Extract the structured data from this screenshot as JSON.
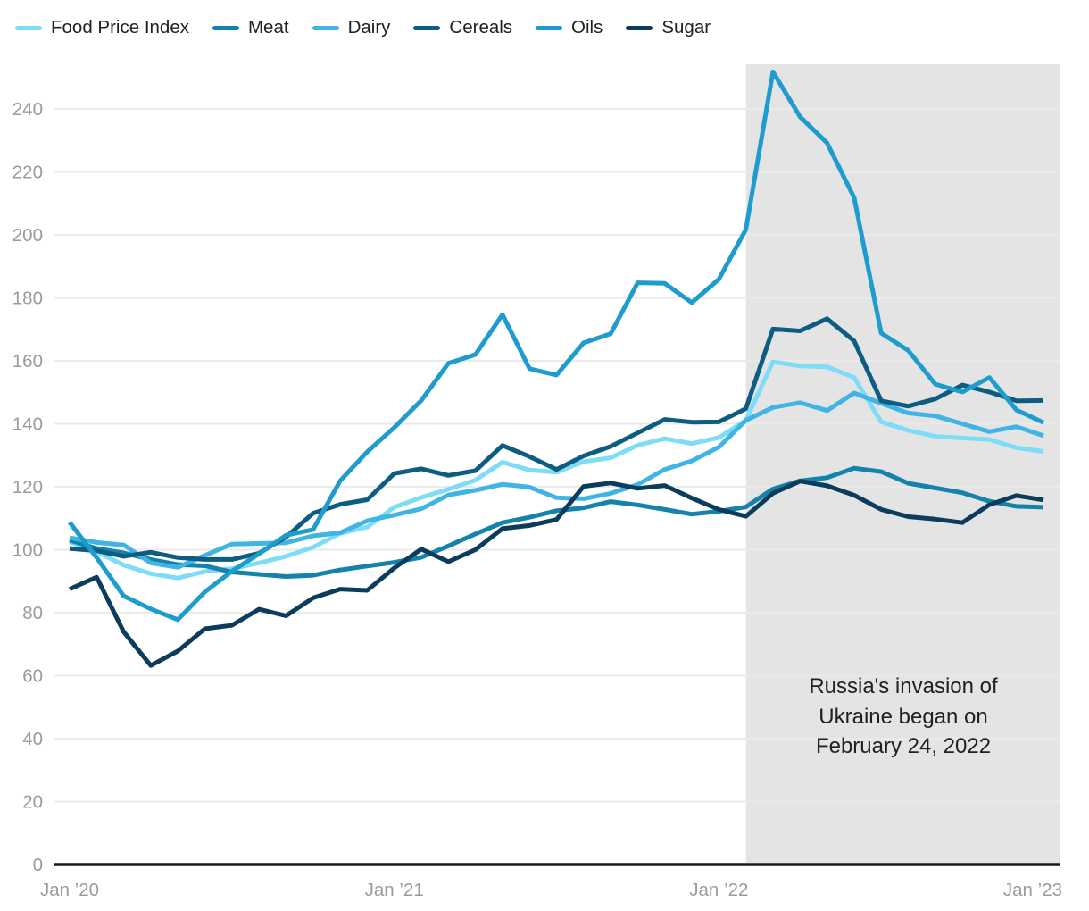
{
  "page": {
    "background": "#ffffff",
    "text_color": "#212121",
    "axis_label_color": "#9b9b9b",
    "axis_line_color": "#1a1a1a",
    "gridline_color": "#eaeaea"
  },
  "annotation": {
    "text": "Russia's invasion of\nUkraine began on\nFebruary 24, 2022",
    "color": "#212121"
  },
  "chart_data": {
    "type": "line",
    "title": "",
    "point_interval": "month",
    "x_axis": {
      "tick_labels": [
        "Jan ’20",
        "Jan ’21",
        "Jan ’22",
        "Jan ’23"
      ],
      "tick_month_indices": [
        0,
        12,
        24,
        36
      ]
    },
    "y_axis": {
      "ticks": [
        0,
        20,
        40,
        60,
        80,
        100,
        120,
        140,
        160,
        180,
        200,
        220,
        240
      ],
      "range": [
        0,
        254.2
      ]
    },
    "grid": "on",
    "legend_position": "top-left",
    "shaded_region": {
      "start_month_index": 25,
      "end": "right-edge",
      "color": "#e4e4e4",
      "meaning": "Russia's invasion of Ukraine began on February 24, 2022"
    },
    "series": [
      {
        "name": "Food Price Index",
        "color": "#7EDCF6",
        "values": [
          102.5,
          99.4,
          95.1,
          92.4,
          91.0,
          93.1,
          94.0,
          95.8,
          97.9,
          100.8,
          105.2,
          107.2,
          113.5,
          116.6,
          119.2,
          122.1,
          127.8,
          125.3,
          124.6,
          128.0,
          129.2,
          133.2,
          135.3,
          133.7,
          135.6,
          141.1,
          159.7,
          158.4,
          158.1,
          154.7,
          140.6,
          137.9,
          136.0,
          135.5,
          135.0,
          132.4,
          131.2
        ]
      },
      {
        "name": "Meat",
        "color": "#1383AB",
        "values": [
          103.0,
          100.4,
          99.0,
          96.9,
          95.3,
          94.9,
          92.9,
          92.2,
          91.5,
          91.9,
          93.6,
          94.8,
          96.0,
          97.6,
          101.2,
          105.0,
          108.6,
          110.3,
          112.4,
          113.3,
          115.3,
          114.2,
          112.8,
          111.3,
          112.2,
          113.6,
          119.3,
          121.9,
          122.9,
          125.9,
          124.8,
          121.1,
          119.6,
          118.1,
          115.4,
          113.8,
          113.5
        ]
      },
      {
        "name": "Dairy",
        "color": "#3FB4E5",
        "values": [
          103.8,
          102.3,
          101.5,
          95.8,
          94.4,
          98.2,
          101.8,
          102.0,
          102.2,
          104.4,
          105.4,
          109.2,
          111.0,
          113.0,
          117.4,
          118.9,
          120.8,
          119.9,
          116.5,
          116.2,
          117.9,
          120.7,
          125.5,
          128.2,
          132.6,
          141.1,
          145.2,
          146.7,
          144.2,
          149.8,
          146.5,
          143.4,
          142.5,
          140.0,
          137.5,
          139.1,
          136.2
        ]
      },
      {
        "name": "Cereals",
        "color": "#0D5C82",
        "values": [
          100.4,
          99.7,
          97.9,
          99.2,
          97.5,
          96.9,
          96.9,
          98.9,
          104.0,
          111.6,
          114.4,
          115.9,
          124.2,
          125.7,
          123.6,
          125.1,
          133.1,
          129.6,
          125.5,
          129.8,
          132.8,
          137.1,
          141.4,
          140.5,
          140.6,
          144.8,
          170.1,
          169.5,
          173.4,
          166.3,
          147.3,
          145.6,
          147.9,
          152.3,
          150.1,
          147.3,
          147.4
        ]
      },
      {
        "name": "Oils",
        "color": "#1F9CCE",
        "values": [
          108.7,
          97.5,
          85.3,
          81.2,
          77.8,
          86.6,
          93.2,
          98.7,
          104.6,
          106.4,
          121.9,
          131.1,
          138.8,
          147.4,
          159.2,
          162.0,
          174.7,
          157.5,
          155.5,
          165.7,
          168.6,
          184.8,
          184.6,
          178.5,
          185.9,
          201.7,
          251.8,
          237.5,
          229.2,
          211.8,
          168.8,
          163.3,
          152.6,
          150.1,
          154.7,
          144.4,
          140.4
        ]
      },
      {
        "name": "Sugar",
        "color": "#0B3C5B",
        "values": [
          87.5,
          91.3,
          73.9,
          63.2,
          67.8,
          74.9,
          76.0,
          81.1,
          79.0,
          84.7,
          87.5,
          87.1,
          94.2,
          100.2,
          96.2,
          100.0,
          106.7,
          107.7,
          109.6,
          120.1,
          121.2,
          119.5,
          120.4,
          116.4,
          112.8,
          110.6,
          117.9,
          121.8,
          120.3,
          117.3,
          112.8,
          110.5,
          109.7,
          108.6,
          114.3,
          117.2,
          115.8
        ]
      }
    ]
  }
}
